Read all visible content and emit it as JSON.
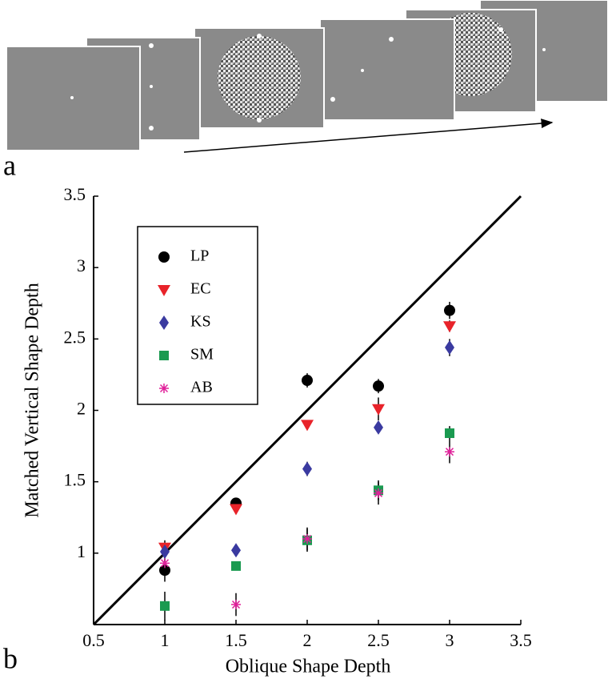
{
  "figure": {
    "panel_a_label": "a",
    "panel_b_label": "b"
  },
  "chart_data": {
    "type": "scatter",
    "x_label": "Oblique Shape Depth",
    "y_label": "Matched Vertical Shape Depth",
    "x": [
      1,
      1.5,
      2,
      2.5,
      3
    ],
    "series": [
      {
        "name": "LP",
        "color": "#000000",
        "marker": "circle",
        "values": [
          0.88,
          1.35,
          2.21,
          2.17,
          2.7
        ],
        "errors": [
          0.08,
          0.03,
          0.05,
          0.05,
          0.06
        ]
      },
      {
        "name": "EC",
        "color": "#e8232a",
        "marker": "triangle-down",
        "values": [
          1.04,
          1.31,
          1.9,
          2.01,
          2.59
        ],
        "errors": [
          0.05,
          0.03,
          0.03,
          0.08,
          0.04
        ]
      },
      {
        "name": "KS",
        "color": "#3a3aa0",
        "marker": "diamond",
        "values": [
          1.01,
          1.02,
          1.59,
          1.88,
          2.44
        ],
        "errors": [
          0.04,
          0.03,
          0.05,
          0.04,
          0.06
        ]
      },
      {
        "name": "SM",
        "color": "#1a9a50",
        "marker": "square",
        "values": [
          0.63,
          0.91,
          1.09,
          1.44,
          1.84
        ],
        "errors": [
          0.1,
          0.03,
          0.08,
          0.07,
          0.05
        ]
      },
      {
        "name": "AB",
        "color": "#e0209a",
        "marker": "asterisk",
        "values": [
          0.93,
          0.64,
          1.1,
          1.42,
          1.71
        ],
        "errors": [
          0.04,
          0.08,
          0.08,
          0.08,
          0.08
        ]
      }
    ],
    "xlim": [
      0.5,
      3.5
    ],
    "ylim": [
      0.5,
      3.5
    ],
    "xticks": [
      0.5,
      1,
      1.5,
      2,
      2.5,
      3,
      3.5
    ],
    "yticks": [
      1,
      1.5,
      2,
      2.5,
      3,
      3.5
    ],
    "legend": "upper left"
  }
}
